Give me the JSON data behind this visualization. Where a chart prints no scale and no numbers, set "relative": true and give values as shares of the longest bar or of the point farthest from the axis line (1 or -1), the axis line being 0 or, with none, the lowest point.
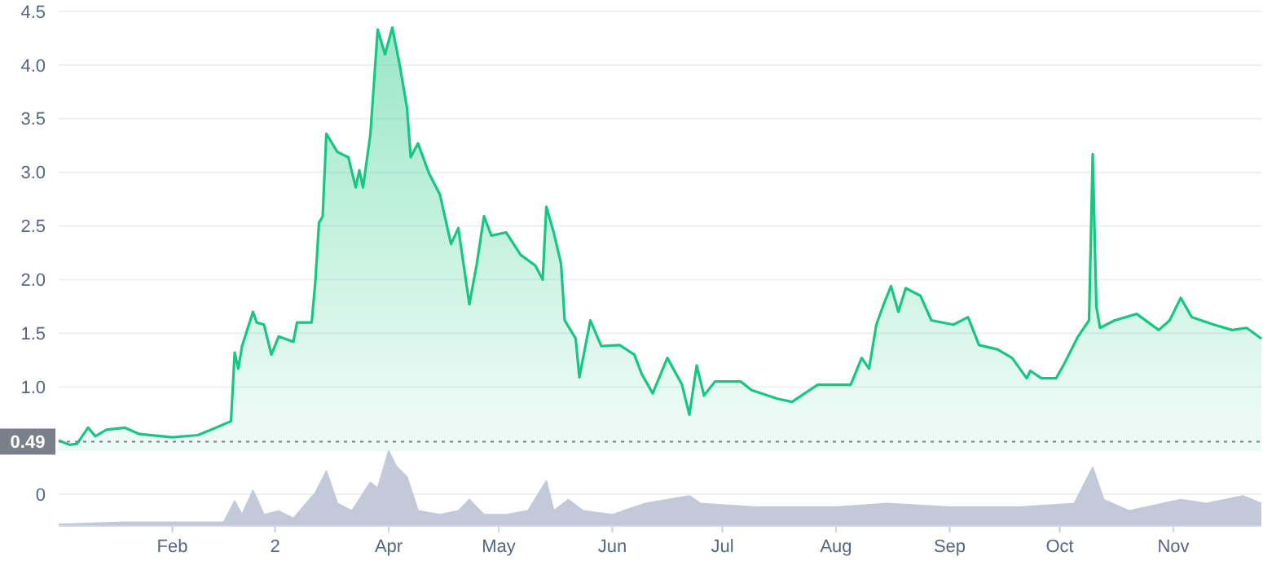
{
  "chart_data": [
    {
      "type": "area",
      "xlim": [
        "--01-01",
        "--11-25"
      ],
      "ylim": [
        0,
        4.5
      ],
      "xticks": [
        {
          "value": "--02-01",
          "label": null
        },
        {
          "value": "--03-01",
          "label": null
        },
        {
          "value": "--04-01",
          "label": null
        },
        {
          "value": "--05-01",
          "label": null
        },
        {
          "value": "--06-01",
          "label": null
        },
        {
          "value": "--07-01",
          "label": null
        },
        {
          "value": "--08-01",
          "label": null
        },
        {
          "value": "--09-01",
          "label": null
        },
        {
          "value": "--10-01",
          "label": null
        },
        {
          "value": "--11-01",
          "label": null
        }
      ],
      "yticks": [
        0,
        {
          "value": 1,
          "label": "1.0"
        },
        1.5,
        {
          "value": 2,
          "label": "2.0"
        },
        2.5,
        {
          "value": 3,
          "label": "3.0"
        },
        3.5,
        {
          "value": 4,
          "label": "4.0"
        },
        4.5
      ],
      "grid": "y",
      "tick_labels": "y",
      "ref_lines": [
        {
          "axis": "y",
          "value": 0.49,
          "label": "0.49",
          "color": "#7a808a",
          "line_style": "dotted"
        }
      ],
      "series": [
        {
          "color": "#16c784",
          "x": [
            "--01-01",
            "--01-04",
            "--01-06",
            "--01-09",
            "--01-11",
            "--01-14",
            "--01-19",
            "--01-23",
            "--02-01",
            "--02-08",
            "--02-15",
            "--02-17",
            "--02-18",
            "--02-19",
            "--02-20",
            "--02-23",
            "--02-24",
            "--02-26",
            "--02-28",
            "--03-02",
            "--03-06",
            "--03-07",
            "--03-11",
            "--03-12",
            "--03-13",
            "--03-14",
            "--03-15",
            "--03-18",
            "--03-21",
            "--03-23",
            "--03-24",
            "--03-25",
            "--03-27",
            "--03-29",
            "--03-31",
            "--04-02",
            "--04-04",
            "--04-06",
            "--04-07",
            "--04-09",
            "--04-12",
            "--04-15",
            "--04-18",
            "--04-20",
            "--04-23",
            "--04-25",
            "--04-27",
            "--04-29",
            "--05-03",
            "--05-07",
            "--05-11",
            "--05-13",
            "--05-14",
            "--05-16",
            "--05-18",
            "--05-19",
            "--05-22",
            "--05-23",
            "--05-26",
            "--05-29",
            "--06-03",
            "--06-07",
            "--06-09",
            "--06-12",
            "--06-16",
            "--06-20",
            "--06-22",
            "--06-24",
            "--06-26",
            "--06-29",
            "--07-06",
            "--07-09",
            "--07-16",
            "--07-20",
            "--07-27",
            "--08-05",
            "--08-08",
            "--08-10",
            "--08-12",
            "--08-14",
            "--08-16",
            "--08-18",
            "--08-20",
            "--08-24",
            "--08-27",
            "--09-02",
            "--09-06",
            "--09-09",
            "--09-14",
            "--09-18",
            "--09-22",
            "--09-23",
            "--09-26",
            "--09-30",
            "--10-02",
            "--10-06",
            "--10-09",
            "--10-10",
            "--10-11",
            "--10-12",
            "--10-16",
            "--10-22",
            "--10-28",
            "--10-31",
            "--11-03",
            "--11-06",
            "--11-12",
            "--11-17",
            "--11-21",
            "--11-25"
          ],
          "values": [
            0.5,
            0.46,
            0.47,
            0.62,
            0.54,
            0.6,
            0.62,
            0.56,
            0.53,
            0.55,
            0.65,
            0.68,
            1.32,
            1.17,
            1.38,
            1.7,
            1.6,
            1.58,
            1.3,
            1.47,
            1.42,
            1.6,
            1.6,
            1.98,
            2.53,
            2.59,
            3.36,
            3.19,
            3.14,
            2.86,
            3.02,
            2.86,
            3.35,
            4.33,
            4.1,
            4.35,
            4.0,
            3.6,
            3.14,
            3.27,
            2.99,
            2.79,
            2.33,
            2.48,
            1.77,
            2.14,
            2.59,
            2.41,
            2.44,
            2.23,
            2.13,
            2.0,
            2.68,
            2.44,
            2.15,
            1.62,
            1.45,
            1.09,
            1.62,
            1.38,
            1.39,
            1.3,
            1.12,
            0.94,
            1.27,
            1.02,
            0.74,
            1.2,
            0.92,
            1.05,
            1.05,
            0.97,
            0.89,
            0.86,
            1.02,
            1.02,
            1.27,
            1.17,
            1.58,
            1.77,
            1.94,
            1.7,
            1.92,
            1.85,
            1.62,
            1.58,
            1.65,
            1.39,
            1.35,
            1.27,
            1.08,
            1.15,
            1.08,
            1.08,
            1.2,
            1.47,
            1.62,
            3.17,
            1.75,
            1.55,
            1.62,
            1.68,
            1.53,
            1.62,
            1.83,
            1.65,
            1.58,
            1.53,
            1.55,
            1.45
          ]
        }
      ]
    },
    {
      "type": "area",
      "relative": true,
      "xlim": [
        "--01-01",
        "--11-25"
      ],
      "xticks": [
        {
          "value": "--02-01",
          "label": "Feb"
        },
        {
          "value": "--03-01",
          "label": "2"
        },
        {
          "value": "--04-01",
          "label": "Apr"
        },
        {
          "value": "--05-01",
          "label": "May"
        },
        {
          "value": "--06-01",
          "label": "Jun"
        },
        {
          "value": "--07-01",
          "label": "Jul"
        },
        {
          "value": "--08-01",
          "label": "Aug"
        },
        {
          "value": "--09-01",
          "label": "Sep"
        },
        {
          "value": "--10-01",
          "label": "Oct"
        },
        {
          "value": "--11-01",
          "label": "Nov"
        }
      ],
      "series": [
        {
          "color": "#c3c9d8",
          "x": [
            "--01-01",
            "--01-19",
            "--02-15",
            "--02-18",
            "--02-20",
            "--02-23",
            "--02-26",
            "--03-02",
            "--03-06",
            "--03-12",
            "--03-15",
            "--03-18",
            "--03-22",
            "--03-27",
            "--03-29",
            "--04-01",
            "--04-03",
            "--04-06",
            "--04-09",
            "--04-15",
            "--04-20",
            "--04-23",
            "--04-27",
            "--05-03",
            "--05-09",
            "--05-14",
            "--05-16",
            "--05-20",
            "--05-24",
            "--06-01",
            "--06-10",
            "--06-22",
            "--06-25",
            "--07-10",
            "--08-01",
            "--08-15",
            "--09-01",
            "--09-20",
            "--10-05",
            "--10-10",
            "--10-13",
            "--10-20",
            "--11-03",
            "--11-10",
            "--11-20",
            "--11-25"
          ],
          "values": [
            0.02,
            0.05,
            0.05,
            0.33,
            0.15,
            0.47,
            0.15,
            0.2,
            0.1,
            0.44,
            0.73,
            0.3,
            0.2,
            0.58,
            0.5,
            1,
            0.8,
            0.65,
            0.2,
            0.15,
            0.2,
            0.35,
            0.15,
            0.15,
            0.2,
            0.6,
            0.2,
            0.35,
            0.2,
            0.15,
            0.3,
            0.4,
            0.3,
            0.25,
            0.25,
            0.3,
            0.25,
            0.25,
            0.3,
            0.78,
            0.35,
            0.2,
            0.35,
            0.3,
            0.4,
            0.3
          ]
        }
      ]
    }
  ]
}
